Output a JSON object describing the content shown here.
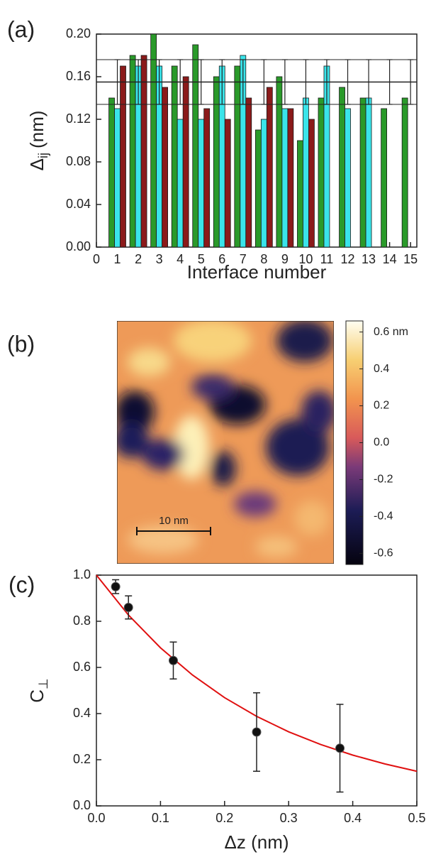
{
  "chart_data": [
    {
      "type": "bar",
      "label": "(a)",
      "x_label": "Interface number",
      "y_label": {
        "symbol": "Δ",
        "sub": "ij",
        "unit": "(nm)"
      },
      "xlim": [
        0,
        15.3
      ],
      "xticks": [
        0,
        1,
        2,
        3,
        4,
        5,
        6,
        7,
        8,
        9,
        10,
        11,
        12,
        13,
        14,
        15
      ],
      "ylim": [
        0,
        0.2
      ],
      "yticks": [
        {
          "value": 0,
          "label": "0.00"
        },
        {
          "value": 0.04,
          "label": "0.04"
        },
        {
          "value": 0.08,
          "label": "0.08"
        },
        {
          "value": 0.12,
          "label": "0.12"
        },
        {
          "value": 0.16,
          "label": "0.16"
        },
        {
          "value": 0.2,
          "label": "0.20"
        }
      ],
      "x": [
        1,
        2,
        3,
        4,
        5,
        6,
        7,
        8,
        9,
        10,
        11,
        12,
        13,
        14,
        15
      ],
      "series": [
        {
          "color": "#2a9a2a",
          "values": [
            0.14,
            0.18,
            0.2,
            0.17,
            0.19,
            0.16,
            0.17,
            0.11,
            0.16,
            0.1,
            0.14,
            0.15,
            0.14,
            0.13,
            0.14
          ]
        },
        {
          "color": "#3ae4ea",
          "values": [
            0.13,
            0.17,
            0.17,
            0.12,
            0.12,
            0.17,
            0.18,
            0.12,
            0.13,
            0.14,
            0.17,
            0.13,
            0.14,
            null,
            null
          ]
        },
        {
          "color": "#8b1a1a",
          "values": [
            0.17,
            0.18,
            0.15,
            0.16,
            0.13,
            0.12,
            0.14,
            0.15,
            0.13,
            0.12,
            null,
            null,
            null,
            null,
            null
          ]
        }
      ],
      "mean_line": 0.155,
      "error_bars": {
        "low": 0.134,
        "high": 0.176
      }
    },
    {
      "type": "image",
      "label": "(b)",
      "scale_bar": "10 nm",
      "colorbar": {
        "lim": [
          -0.66,
          0.66
        ],
        "ticks": [
          {
            "value": 0.6,
            "label": "0.6 nm"
          },
          0.4,
          0.2,
          {
            "value": 0,
            "label": "0.0"
          },
          -0.2,
          -0.4,
          -0.6
        ]
      }
    },
    {
      "type": "scatter",
      "label": "(c)",
      "x_label": "Δz (nm)",
      "y_label": {
        "symbol": "C",
        "sub": "⊥"
      },
      "xlim": [
        0,
        0.5
      ],
      "xticks": [
        {
          "value": 0,
          "label": "0.0"
        },
        0.1,
        0.2,
        0.3,
        0.4,
        0.5
      ],
      "ylim": [
        0,
        1
      ],
      "yticks": [
        {
          "value": 0,
          "label": "0.0"
        },
        0.2,
        0.4,
        0.6,
        0.8,
        {
          "value": 1,
          "label": "1.0"
        }
      ],
      "points": {
        "color": "#111111",
        "x": [
          0.03,
          0.05,
          0.12,
          0.25,
          0.38
        ],
        "values": [
          0.95,
          0.86,
          0.63,
          0.32,
          0.25
        ],
        "errors": [
          0.03,
          0.05,
          0.08,
          0.17,
          0.19
        ]
      },
      "fit": {
        "color": "#e01010",
        "x": [
          0,
          0.05,
          0.1,
          0.15,
          0.2,
          0.25,
          0.3,
          0.35,
          0.4,
          0.45,
          0.5
        ],
        "values": [
          1,
          0.827,
          0.685,
          0.567,
          0.469,
          0.388,
          0.321,
          0.266,
          0.22,
          0.182,
          0.15
        ]
      }
    }
  ]
}
